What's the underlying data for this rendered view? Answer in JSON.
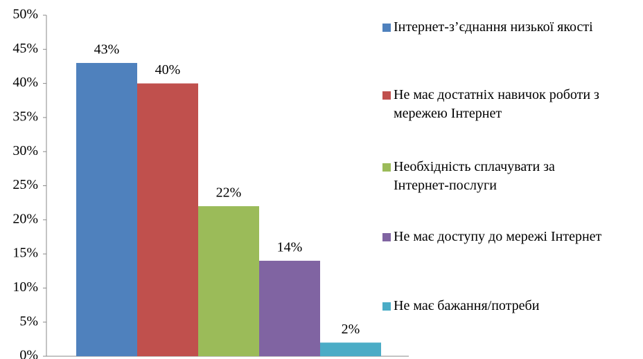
{
  "chart_data": {
    "type": "bar",
    "categories": [
      null
    ],
    "series": [
      {
        "name": "Інтернет-з’єднання низької якості",
        "color": "#4f81bd",
        "values": [
          43
        ],
        "value_labels": [
          "43%"
        ]
      },
      {
        "name": "Не має достатніх навичок роботи з мережею Інтернет",
        "color": "#c0504d",
        "values": [
          40
        ],
        "value_labels": [
          "40%"
        ]
      },
      {
        "name": "Необхідність сплачувати за Інтернет-послуги",
        "color": "#9bbb59",
        "values": [
          22
        ],
        "value_labels": [
          "22%"
        ]
      },
      {
        "name": "Не має доступу до мережі Інтернет",
        "color": "#8064a2",
        "values": [
          14
        ],
        "value_labels": [
          "14%"
        ]
      },
      {
        "name": "Не має бажання/потреби",
        "color": "#4bacc6",
        "values": [
          2
        ],
        "value_labels": [
          "2%"
        ]
      }
    ],
    "ylim": [
      0,
      50
    ],
    "yticks": [
      {
        "value": 0,
        "label": "0%"
      },
      {
        "value": 5,
        "label": "5%"
      },
      {
        "value": 10,
        "label": "10%"
      },
      {
        "value": 15,
        "label": "15%"
      },
      {
        "value": 20,
        "label": "20%"
      },
      {
        "value": 25,
        "label": "25%"
      },
      {
        "value": 30,
        "label": "30%"
      },
      {
        "value": 35,
        "label": "35%"
      },
      {
        "value": 40,
        "label": "40%"
      },
      {
        "value": 45,
        "label": "45%"
      },
      {
        "value": 50,
        "label": "50%"
      }
    ],
    "grid": false,
    "legend": "right"
  }
}
